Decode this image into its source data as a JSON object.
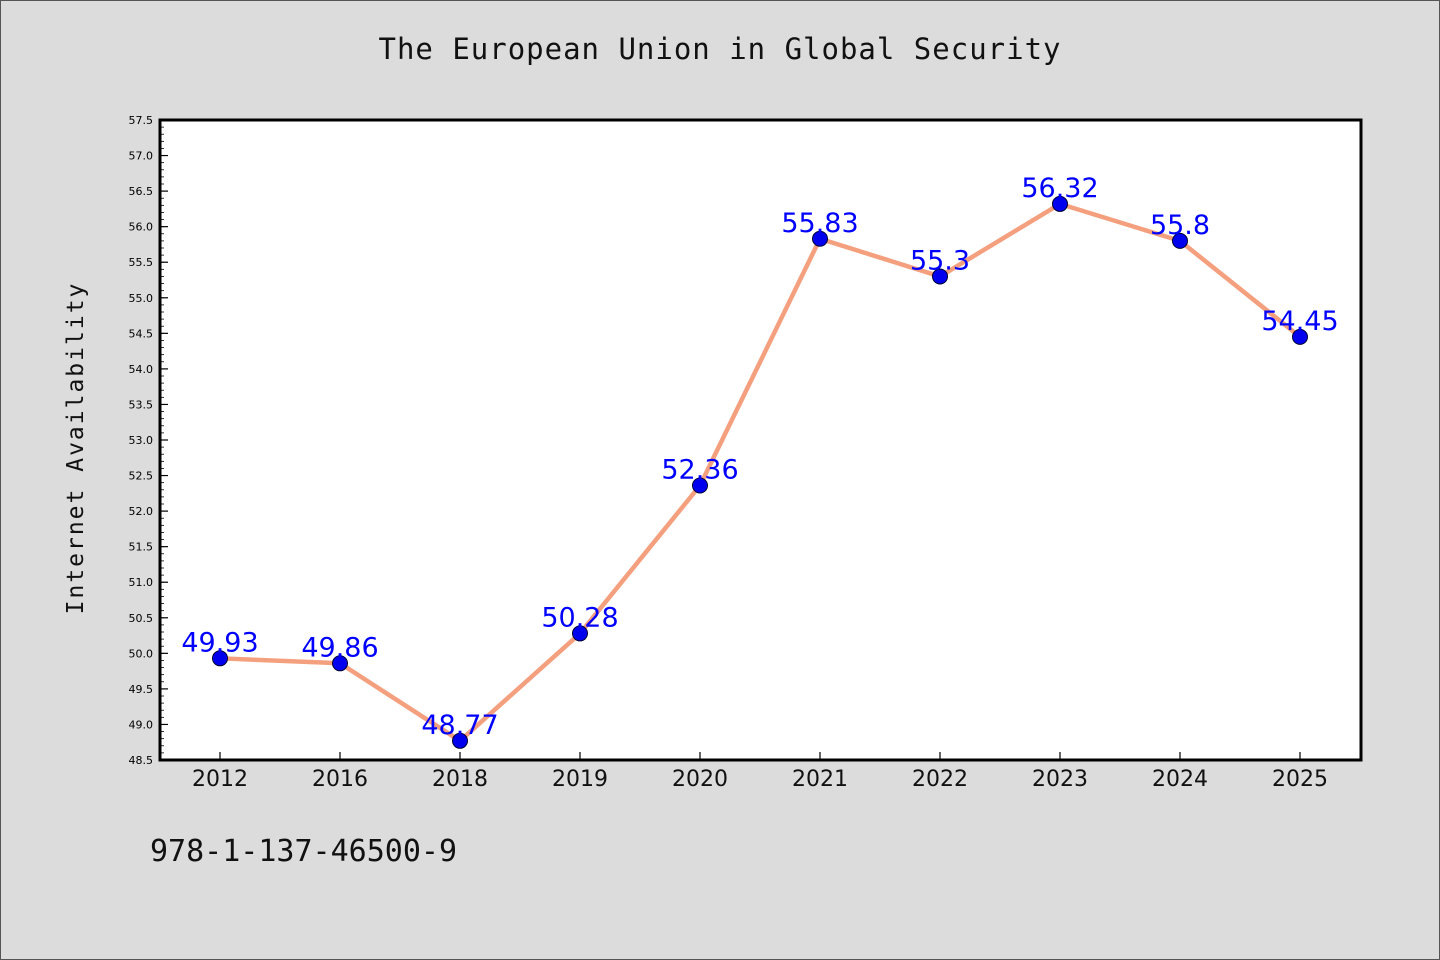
{
  "title": "The European Union in Global Security",
  "footer_text": "978-1-137-46500-9",
  "colors": {
    "background": "#dcdcdc",
    "plot_bg": "#ffffff",
    "line": "#f4a07f",
    "marker": "#0000ee",
    "data_label": "#0000ff"
  },
  "chart_data": {
    "type": "line",
    "title": "The European Union in Global Security",
    "xlabel": "",
    "ylabel": "Internet Availability",
    "categories": [
      "2012",
      "2016",
      "2018",
      "2019",
      "2020",
      "2021",
      "2022",
      "2023",
      "2024",
      "2025"
    ],
    "series": [
      {
        "values": [
          49.93,
          49.86,
          48.77,
          50.28,
          52.36,
          55.83,
          55.3,
          56.32,
          55.8,
          54.45
        ],
        "labels": [
          "49.93",
          "49.86",
          "48.77",
          "50.28",
          "52.36",
          "55.83",
          "55.3",
          "56.32",
          "55.8",
          "54.45"
        ]
      }
    ],
    "ylim": [
      48.5,
      57.5
    ],
    "yticks": [
      "48.5",
      "49.0",
      "49.5",
      "50.0",
      "50.5",
      "51.0",
      "51.5",
      "52.0",
      "52.5",
      "53.0",
      "53.5",
      "54.0",
      "54.5",
      "55.0",
      "55.5",
      "56.0",
      "56.5",
      "57.0",
      "57.5"
    ],
    "grid": false,
    "legend": "none"
  }
}
